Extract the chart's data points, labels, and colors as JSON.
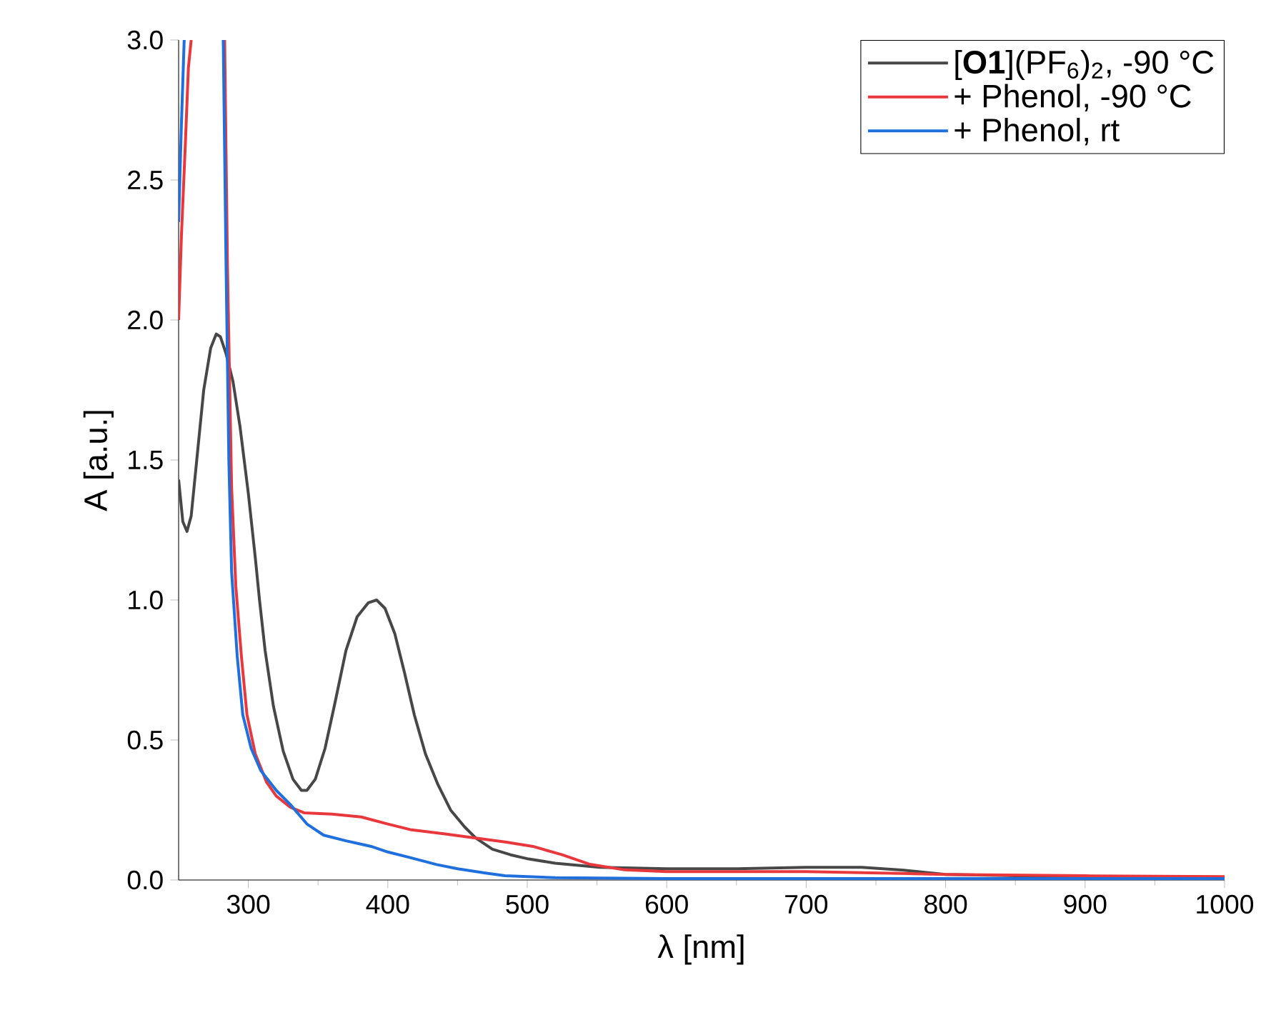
{
  "chart_data": {
    "type": "line",
    "xlabel": "λ [nm]",
    "ylabel": "A [a.u.]",
    "xlim": [
      250,
      1000
    ],
    "xticks": [
      300,
      400,
      500,
      600,
      700,
      800,
      900,
      1000
    ],
    "ylim": [
      0,
      3.0
    ],
    "yticks": [
      {
        "value": 0,
        "label": "0.0"
      },
      {
        "value": 0.5,
        "label": "0.5"
      },
      {
        "value": 1.0,
        "label": "1.0"
      },
      {
        "value": 1.5,
        "label": "1.5"
      },
      {
        "value": 2.0,
        "label": "2.0"
      },
      {
        "value": 2.5,
        "label": "2.5"
      },
      {
        "value": 3.0,
        "label": "3.0"
      }
    ],
    "legend": "top right",
    "grid": false,
    "series": [
      {
        "name": "[**O1**](PF$_{6}$)$_{2}$, -90 °C",
        "color": "#474747",
        "x": [
          250,
          253,
          256,
          259,
          263,
          268,
          273,
          277,
          280,
          284,
          289,
          294,
          300,
          305,
          308,
          312,
          318,
          325,
          332,
          338,
          342,
          348,
          355,
          362,
          370,
          378,
          386,
          392,
          398,
          405,
          412,
          419,
          427,
          436,
          445,
          455,
          463,
          475,
          488,
          501,
          520,
          552,
          600,
          650,
          700,
          740,
          770,
          800,
          850,
          900,
          1000
        ],
        "values": [
          1.43,
          1.28,
          1.245,
          1.3,
          1.5,
          1.75,
          1.9,
          1.95,
          1.94,
          1.88,
          1.78,
          1.62,
          1.38,
          1.15,
          1.0,
          0.82,
          0.62,
          0.46,
          0.36,
          0.32,
          0.32,
          0.36,
          0.47,
          0.63,
          0.82,
          0.94,
          0.99,
          1.0,
          0.97,
          0.88,
          0.74,
          0.59,
          0.45,
          0.34,
          0.25,
          0.19,
          0.15,
          0.11,
          0.09,
          0.075,
          0.06,
          0.045,
          0.04,
          0.04,
          0.045,
          0.045,
          0.035,
          0.02,
          0.015,
          0.012,
          0.01
        ]
      },
      {
        "name": "+ Phenol, -90 °C",
        "color": "#e8383d",
        "x": [
          250,
          252,
          255,
          257,
          259,
          270,
          283,
          285,
          288,
          291,
          295,
          299,
          305,
          313,
          320,
          330,
          340,
          360,
          381,
          400,
          416,
          440,
          463,
          485,
          504,
          525,
          545,
          570,
          600,
          700,
          800,
          900,
          1000
        ],
        "values": [
          2.0,
          2.3,
          2.65,
          2.9,
          3.0,
          null,
          3.0,
          2.2,
          1.4,
          1.05,
          0.8,
          0.59,
          0.45,
          0.35,
          0.3,
          0.26,
          0.24,
          0.235,
          0.225,
          0.2,
          0.18,
          0.165,
          0.15,
          0.135,
          0.12,
          0.09,
          0.056,
          0.036,
          0.03,
          0.03,
          0.02,
          0.015,
          0.012
        ]
      },
      {
        "name": "+ Phenol, rt",
        "color": "#1f6fdc",
        "x": [
          250,
          252,
          254,
          270,
          282,
          284,
          286,
          288,
          292,
          296,
          302,
          309,
          320,
          330,
          342,
          354,
          370,
          388,
          400,
          416,
          435,
          450,
          470,
          484,
          520,
          600,
          800,
          1000
        ],
        "values": [
          2.35,
          2.7,
          3.0,
          null,
          3.0,
          2.2,
          1.5,
          1.1,
          0.8,
          0.59,
          0.47,
          0.39,
          0.32,
          0.27,
          0.2,
          0.16,
          0.14,
          0.12,
          0.1,
          0.08,
          0.055,
          0.04,
          0.025,
          0.015,
          0.008,
          0.005,
          0.005,
          0.005
        ]
      }
    ]
  }
}
